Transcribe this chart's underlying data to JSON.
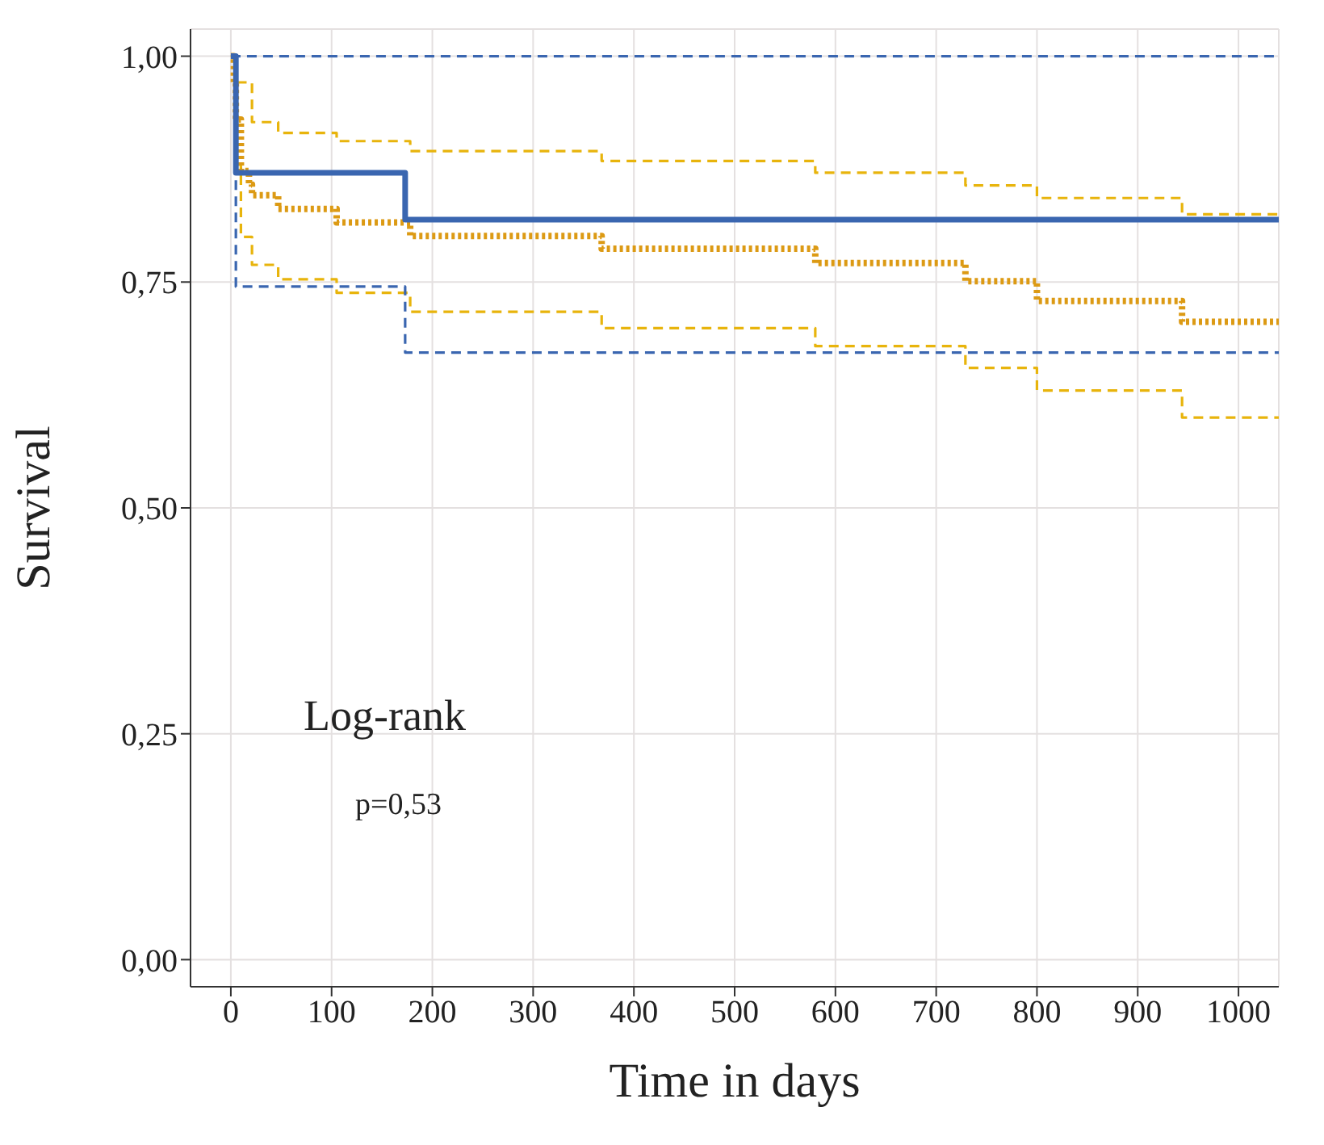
{
  "chart_data": {
    "type": "step",
    "xlabel": "Time in days",
    "ylabel": "Survival",
    "xlim": [
      -40,
      1040
    ],
    "xticks": [
      0,
      100,
      200,
      300,
      400,
      500,
      600,
      700,
      800,
      900,
      1000
    ],
    "ylim": [
      -0.03,
      1.03
    ],
    "yticks": [
      {
        "value": 0,
        "label": "0,00"
      },
      {
        "value": 0.25,
        "label": "0,25"
      },
      {
        "value": 0.5,
        "label": "0,50"
      },
      {
        "value": 0.75,
        "label": "0,75"
      },
      {
        "value": 1,
        "label": "1,00"
      }
    ],
    "grid": true,
    "annotations": [
      "Log-rank",
      "p=0,53"
    ],
    "series": [
      {
        "color": "#e8b40c",
        "line_style": "dashed",
        "x": [
          0,
          5,
          21,
          47,
          105,
          178,
          368,
          580,
          729,
          800,
          944,
          1040
        ],
        "values": [
          1,
          0.971,
          0.927,
          0.915,
          0.906,
          0.895,
          0.884,
          0.871,
          0.857,
          0.843,
          0.825,
          0.825
        ]
      },
      {
        "color": "#e8b40c",
        "line_style": "dashed",
        "x": [
          0,
          5,
          10,
          21,
          47,
          105,
          178,
          368,
          580,
          729,
          800,
          944,
          1040
        ],
        "values": [
          1,
          0.88,
          0.8,
          0.769,
          0.753,
          0.738,
          0.717,
          0.699,
          0.679,
          0.655,
          0.63,
          0.6,
          0.6
        ]
      },
      {
        "color": "#3a66b0",
        "line_style": "dashed",
        "x": [
          0,
          1040
        ],
        "values": [
          1,
          1
        ]
      },
      {
        "color": "#3a66b0",
        "line_style": "dashed",
        "x": [
          0,
          5,
          173,
          1040
        ],
        "values": [
          1,
          0.745,
          0.672,
          0.672
        ]
      },
      {
        "color": "#dc9a14",
        "line_style": "dotted",
        "x": [
          0,
          3,
          5,
          10,
          18,
          21,
          47,
          105,
          178,
          368,
          580,
          729,
          800,
          944,
          1040
        ],
        "values": [
          1,
          0.97,
          0.93,
          0.873,
          0.858,
          0.846,
          0.831,
          0.816,
          0.801,
          0.787,
          0.771,
          0.751,
          0.729,
          0.706,
          0.706
        ]
      },
      {
        "color": "#3a66b0",
        "line_style": "solid",
        "x": [
          0,
          5,
          173,
          1040
        ],
        "values": [
          1,
          0.871,
          0.819,
          0.819
        ]
      }
    ]
  }
}
